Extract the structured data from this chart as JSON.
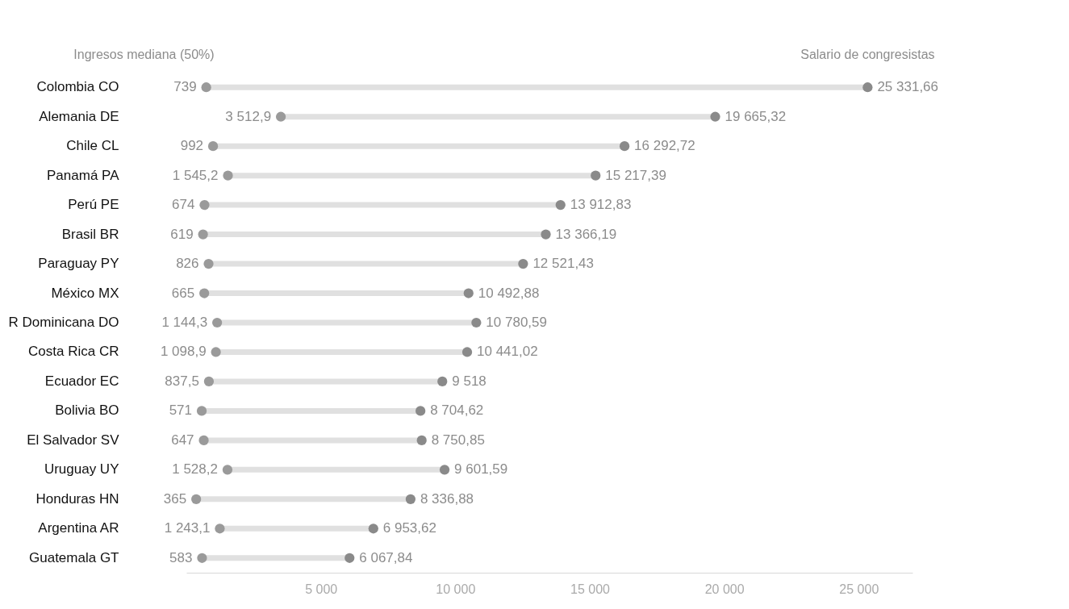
{
  "chart_data": {
    "type": "scatter",
    "orientation": "horizontal",
    "categories": [
      "Colombia CO",
      "Alemania DE",
      "Chile CL",
      "Panamá PA",
      "Perú PE",
      "Brasil BR",
      "Paraguay PY",
      "México MX",
      "R Dominicana DO",
      "Costa Rica CR",
      "Ecuador EC",
      "Bolivia BO",
      "El Salvador SV",
      "Uruguay UY",
      "Honduras HN",
      "Argentina AR",
      "Guatemala GT"
    ],
    "series": [
      {
        "name": "Ingresos mediana (50%)",
        "color": "#9a9a9a",
        "values": [
          739,
          3512.9,
          992,
          1545.2,
          674,
          619,
          826,
          665,
          1144.3,
          1098.9,
          837.5,
          571,
          647,
          1528.2,
          365,
          1243.1,
          583
        ],
        "value_labels": [
          "739",
          "3 512,9",
          "992",
          "1 545,2",
          "674",
          "619",
          "826",
          "665",
          "1 144,3",
          "1 098,9",
          "837,5",
          "571",
          "647",
          "1 528,2",
          "365",
          "1 243,1",
          "583"
        ]
      },
      {
        "name": "Salario de congresistas",
        "color": "#8a8a8a",
        "values": [
          25331.66,
          19665.32,
          16292.72,
          15217.39,
          13912.83,
          13366.19,
          12521.43,
          10492.88,
          10780.59,
          10441.02,
          9518,
          8704.62,
          8750.85,
          9601.59,
          8336.88,
          6953.62,
          6067.84
        ],
        "value_labels": [
          "25 331,66",
          "19 665,32",
          "16 292,72",
          "15 217,39",
          "13 912,83",
          "13 366,19",
          "12 521,43",
          "10 492,88",
          "10 780,59",
          "10 441,02",
          "9 518",
          "8 704,62",
          "8 750,85",
          "9 601,59",
          "8 336,88",
          "6 953,62",
          "6 067,84"
        ]
      }
    ],
    "xlim": [
      0,
      27000
    ],
    "xticks": [
      {
        "value": 5000,
        "label": "5 000"
      },
      {
        "value": 10000,
        "label": "10 000"
      },
      {
        "value": 15000,
        "label": "15 000"
      },
      {
        "value": 20000,
        "label": "20 000"
      },
      {
        "value": 25000,
        "label": "25 000"
      }
    ],
    "marker": "circle",
    "legend": false,
    "grid": false
  }
}
